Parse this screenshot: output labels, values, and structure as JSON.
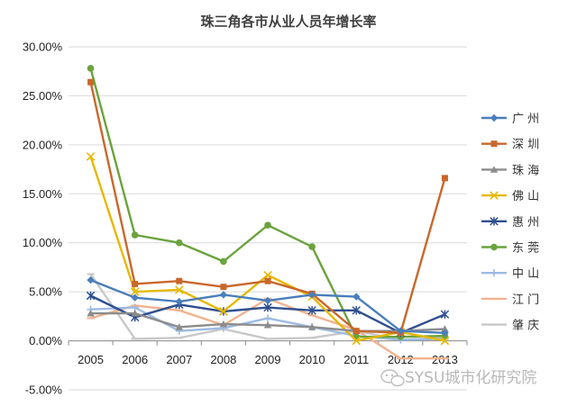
{
  "colors": {
    "广州": "#4a7ebb",
    "深圳": "#c8682b",
    "珠海": "#8c8c8c",
    "佛山": "#e6b800",
    "惠州": "#2f4f8f",
    "东莞": "#6aa33e",
    "中山": "#9dbbe3",
    "江门": "#f2b28f",
    "肇庆": "#c8c8c8"
  },
  "watermark": "SYSU城市化研究院",
  "chart_data": {
    "type": "line",
    "title": "珠三角各市从业人员年增长率",
    "x": [
      "2005",
      "2006",
      "2007",
      "2008",
      "2009",
      "2010",
      "2011",
      "2012",
      "2013"
    ],
    "ylim": [
      -0.05,
      0.3
    ],
    "yticks": [
      "-5.00%",
      "0.00%",
      "5.00%",
      "10.00%",
      "15.00%",
      "20.00%",
      "25.00%",
      "30.00%"
    ],
    "ytick_values": [
      -0.05,
      0,
      0.05,
      0.1,
      0.15,
      0.2,
      0.25,
      0.3
    ],
    "grid": "horizontal",
    "legend_position": "right",
    "series": [
      {
        "name": "广  州",
        "key": "广州",
        "marker": "diamond",
        "values": [
          0.062,
          0.044,
          0.04,
          0.047,
          0.041,
          0.047,
          0.045,
          0.01,
          0.008
        ]
      },
      {
        "name": "深  圳",
        "key": "深圳",
        "marker": "square",
        "values": [
          0.264,
          0.058,
          0.061,
          0.055,
          0.061,
          0.048,
          0.01,
          0.008,
          0.166
        ]
      },
      {
        "name": "珠  海",
        "key": "珠海",
        "marker": "triangle",
        "values": [
          0.028,
          0.028,
          0.014,
          0.017,
          0.016,
          0.014,
          0.01,
          0.01,
          0.012
        ]
      },
      {
        "name": "佛  山",
        "key": "佛山",
        "marker": "x",
        "values": [
          0.188,
          0.05,
          0.052,
          0.03,
          0.067,
          0.045,
          0.0,
          0.009,
          0.0
        ]
      },
      {
        "name": "惠  州",
        "key": "惠州",
        "marker": "star",
        "values": [
          0.046,
          0.024,
          0.037,
          0.03,
          0.034,
          0.031,
          0.031,
          0.008,
          0.027
        ]
      },
      {
        "name": "东  莞",
        "key": "东莞",
        "marker": "circle",
        "values": [
          0.278,
          0.108,
          0.1,
          0.081,
          0.118,
          0.096,
          0.004,
          0.004,
          0.005
        ]
      },
      {
        "name": "中  山",
        "key": "中山",
        "marker": "plus",
        "values": [
          0.032,
          0.034,
          0.01,
          0.013,
          0.023,
          0.014,
          0.005,
          0.001,
          0.002
        ]
      },
      {
        "name": "江  门",
        "key": "江门",
        "marker": "dash",
        "values": [
          0.023,
          0.036,
          0.031,
          0.016,
          0.043,
          0.026,
          0.011,
          -0.018,
          -0.018
        ]
      },
      {
        "name": "肇  庆",
        "key": "肇庆",
        "marker": "dash",
        "values": [
          0.068,
          0.002,
          0.003,
          0.012,
          0.002,
          0.003,
          0.01,
          0.001,
          0.003
        ]
      }
    ]
  }
}
